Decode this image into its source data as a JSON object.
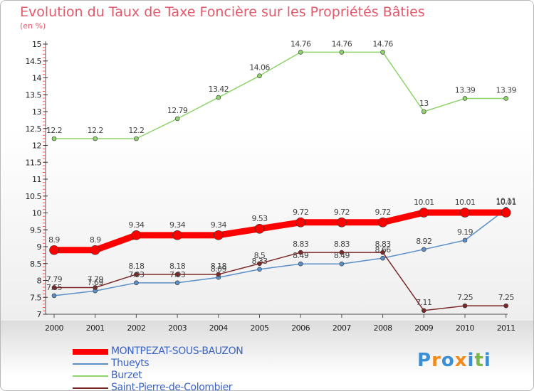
{
  "header": {
    "title": "Evolution du Taux de Taxe Foncière sur les Propriétés Bâties",
    "subtitle": "(en %)"
  },
  "logo": {
    "text": "Proxiti",
    "colors": [
      "#3b8fd6",
      "#f08c1e",
      "#3b8fd6",
      "#f08c1e",
      "#3b8fd6",
      "#7ab648",
      "#3b8fd6"
    ]
  },
  "chart_data": {
    "type": "line",
    "title": "Evolution du Taux de Taxe Foncière sur les Propriétés Bâties",
    "ylabel": "(en %)",
    "xlabel": "",
    "x": [
      "2000",
      "2001",
      "2002",
      "2003",
      "2004",
      "2005",
      "2006",
      "2007",
      "2008",
      "2009",
      "2010",
      "2011"
    ],
    "ylim": [
      7,
      15
    ],
    "yticks": [
      "7",
      "7.5",
      "8",
      "8.5",
      "9",
      "9.5",
      "10",
      "10.5",
      "11",
      "11.5",
      "12",
      "12.5",
      "13",
      "13.5",
      "14",
      "14.5",
      "15"
    ],
    "grid": false,
    "legend_position": "bottom-left",
    "series": [
      {
        "name": "MONTPEZAT-SOUS-BAUZON",
        "color": "#ff0000",
        "values": [
          8.9,
          8.9,
          9.34,
          9.34,
          9.34,
          9.53,
          9.72,
          9.72,
          9.72,
          10.01,
          10.01,
          10.01
        ],
        "labels": [
          "8.9",
          "8.9",
          "9.34",
          "9.34",
          "9.34",
          "9.53",
          "9.72",
          "9.72",
          "9.72",
          "10.01",
          "10.01",
          "10.01"
        ]
      },
      {
        "name": "Thueyts",
        "color": "#5a8fc8",
        "values": [
          7.55,
          7.69,
          7.93,
          7.93,
          8.09,
          8.33,
          8.49,
          8.49,
          8.66,
          8.92,
          9.19,
          10.11
        ],
        "labels": [
          "7.55",
          "7.69",
          "7.93",
          "7.93",
          "8.09",
          "8.33",
          "8.49",
          "8.49",
          "8.66",
          "8.92",
          "9.19",
          "10.11"
        ]
      },
      {
        "name": "Burzet",
        "color": "#8fd46a",
        "values": [
          12.2,
          12.2,
          12.2,
          12.79,
          13.42,
          14.06,
          14.76,
          14.76,
          14.76,
          13,
          13.39,
          13.39
        ],
        "labels": [
          "12.2",
          "12.2",
          "12.2",
          "12.79",
          "13.42",
          "14.06",
          "14.76",
          "14.76",
          "14.76",
          "13",
          "13.39",
          "13.39"
        ]
      },
      {
        "name": "Saint-Pierre-de-Colombier",
        "color": "#7b2a2a",
        "values": [
          7.79,
          7.79,
          8.18,
          8.18,
          8.18,
          8.5,
          8.83,
          8.83,
          8.83,
          7.11,
          7.25,
          7.25
        ],
        "labels": [
          "7.79",
          "7.79",
          "8.18",
          "8.18",
          "8.18",
          "8.5",
          "8.83",
          "8.83",
          "8.83",
          "7.11",
          "7.25",
          "7.25"
        ]
      }
    ]
  }
}
